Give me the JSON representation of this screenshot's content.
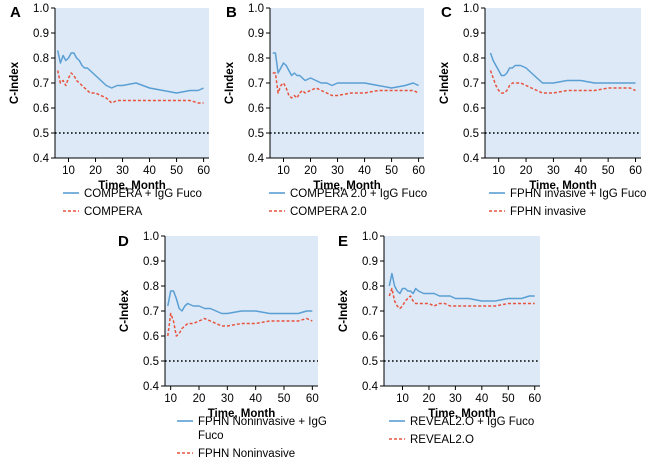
{
  "chart_data": [
    {
      "panel": "A",
      "type": "line",
      "xlabel": "Time, Month",
      "ylabel": "C-Index",
      "xlim": [
        5,
        62
      ],
      "ylim": [
        0.4,
        1.0
      ],
      "xticks": [
        10,
        20,
        30,
        40,
        50,
        60
      ],
      "yticks": [
        0.4,
        0.5,
        0.6,
        0.7,
        0.8,
        0.9,
        1.0
      ],
      "reference_line": 0.5,
      "series": [
        {
          "name": "COMPERA + IgG Fuco",
          "style": "solid",
          "color": "#5a9fd4",
          "x": [
            6,
            7,
            8,
            9,
            10,
            11,
            12,
            13,
            14,
            15,
            16,
            17,
            18,
            19,
            20,
            22,
            24,
            26,
            28,
            30,
            35,
            40,
            45,
            50,
            55,
            58,
            60
          ],
          "y": [
            0.83,
            0.78,
            0.81,
            0.79,
            0.8,
            0.82,
            0.82,
            0.8,
            0.79,
            0.77,
            0.76,
            0.76,
            0.75,
            0.74,
            0.73,
            0.71,
            0.69,
            0.68,
            0.69,
            0.69,
            0.7,
            0.68,
            0.67,
            0.66,
            0.67,
            0.67,
            0.68
          ]
        },
        {
          "name": "COMPERA",
          "style": "dashed",
          "color": "#e8533d",
          "x": [
            6,
            7,
            8,
            9,
            10,
            11,
            12,
            13,
            14,
            15,
            16,
            17,
            18,
            19,
            20,
            22,
            24,
            26,
            28,
            30,
            35,
            40,
            45,
            50,
            55,
            58,
            60
          ],
          "y": [
            0.75,
            0.7,
            0.71,
            0.69,
            0.72,
            0.74,
            0.73,
            0.71,
            0.7,
            0.69,
            0.68,
            0.67,
            0.66,
            0.66,
            0.66,
            0.65,
            0.64,
            0.62,
            0.63,
            0.63,
            0.63,
            0.63,
            0.63,
            0.63,
            0.63,
            0.62,
            0.62
          ]
        }
      ]
    },
    {
      "panel": "B",
      "type": "line",
      "xlabel": "Time, Month",
      "ylabel": "C-Index",
      "xlim": [
        5,
        62
      ],
      "ylim": [
        0.4,
        1.0
      ],
      "xticks": [
        10,
        20,
        30,
        40,
        50,
        60
      ],
      "yticks": [
        0.4,
        0.5,
        0.6,
        0.7,
        0.8,
        0.9,
        1.0
      ],
      "reference_line": 0.5,
      "series": [
        {
          "name": "COMPERA 2.0 + IgG Fuco",
          "style": "solid",
          "color": "#5a9fd4",
          "x": [
            6,
            7,
            8,
            9,
            10,
            11,
            12,
            13,
            14,
            15,
            16,
            17,
            18,
            20,
            22,
            24,
            26,
            28,
            30,
            35,
            40,
            45,
            50,
            55,
            58,
            60
          ],
          "y": [
            0.82,
            0.82,
            0.74,
            0.76,
            0.78,
            0.77,
            0.75,
            0.73,
            0.74,
            0.73,
            0.73,
            0.72,
            0.71,
            0.72,
            0.71,
            0.7,
            0.7,
            0.69,
            0.7,
            0.7,
            0.7,
            0.69,
            0.68,
            0.69,
            0.7,
            0.69
          ]
        },
        {
          "name": "COMPERA 2.0",
          "style": "dashed",
          "color": "#e8533d",
          "x": [
            6,
            7,
            8,
            9,
            10,
            11,
            12,
            13,
            14,
            15,
            16,
            17,
            18,
            20,
            22,
            24,
            26,
            28,
            30,
            35,
            40,
            45,
            50,
            55,
            58,
            60
          ],
          "y": [
            0.74,
            0.74,
            0.66,
            0.69,
            0.7,
            0.68,
            0.65,
            0.64,
            0.65,
            0.64,
            0.66,
            0.67,
            0.66,
            0.67,
            0.68,
            0.67,
            0.66,
            0.65,
            0.65,
            0.66,
            0.66,
            0.67,
            0.67,
            0.67,
            0.67,
            0.66
          ]
        }
      ]
    },
    {
      "panel": "C",
      "type": "line",
      "xlabel": "Time, Month",
      "ylabel": "C-Index",
      "xlim": [
        5,
        62
      ],
      "ylim": [
        0.4,
        1.0
      ],
      "xticks": [
        10,
        20,
        30,
        40,
        50,
        60
      ],
      "yticks": [
        0.4,
        0.5,
        0.6,
        0.7,
        0.8,
        0.9,
        1.0
      ],
      "reference_line": 0.5,
      "series": [
        {
          "name": "FPHN invasive + IgG Fuco",
          "style": "solid",
          "color": "#5a9fd4",
          "x": [
            7,
            8,
            9,
            10,
            11,
            12,
            13,
            14,
            15,
            16,
            18,
            20,
            22,
            24,
            26,
            28,
            30,
            35,
            40,
            45,
            50,
            55,
            58,
            60
          ],
          "y": [
            0.82,
            0.79,
            0.77,
            0.75,
            0.73,
            0.73,
            0.74,
            0.76,
            0.76,
            0.77,
            0.77,
            0.76,
            0.74,
            0.72,
            0.7,
            0.7,
            0.7,
            0.71,
            0.71,
            0.7,
            0.7,
            0.7,
            0.7,
            0.7
          ]
        },
        {
          "name": "FPHN invasive",
          "style": "dashed",
          "color": "#e8533d",
          "x": [
            7,
            8,
            9,
            10,
            11,
            12,
            13,
            14,
            15,
            16,
            18,
            20,
            22,
            24,
            26,
            28,
            30,
            35,
            40,
            45,
            50,
            55,
            58,
            60
          ],
          "y": [
            0.75,
            0.72,
            0.69,
            0.67,
            0.66,
            0.66,
            0.67,
            0.69,
            0.7,
            0.7,
            0.7,
            0.69,
            0.68,
            0.67,
            0.66,
            0.66,
            0.66,
            0.67,
            0.67,
            0.67,
            0.68,
            0.68,
            0.68,
            0.67
          ]
        }
      ]
    },
    {
      "panel": "D",
      "type": "line",
      "xlabel": "Time, Month",
      "ylabel": "C-Index",
      "xlim": [
        8,
        62
      ],
      "ylim": [
        0.4,
        1.0
      ],
      "xticks": [
        10,
        20,
        30,
        40,
        50,
        60
      ],
      "yticks": [
        0.4,
        0.5,
        0.6,
        0.7,
        0.8,
        0.9,
        1.0
      ],
      "reference_line": 0.5,
      "series": [
        {
          "name": "FPHN Noninvasive + IgG Fuco",
          "style": "solid",
          "color": "#5a9fd4",
          "x": [
            9,
            10,
            11,
            12,
            13,
            14,
            15,
            16,
            18,
            20,
            22,
            24,
            26,
            28,
            30,
            35,
            40,
            45,
            50,
            55,
            58,
            60
          ],
          "y": [
            0.72,
            0.78,
            0.78,
            0.75,
            0.71,
            0.7,
            0.72,
            0.73,
            0.72,
            0.72,
            0.71,
            0.71,
            0.7,
            0.69,
            0.69,
            0.7,
            0.7,
            0.69,
            0.69,
            0.69,
            0.7,
            0.7
          ]
        },
        {
          "name": "FPHN Noninvasive",
          "style": "dashed",
          "color": "#e8533d",
          "x": [
            9,
            10,
            11,
            12,
            13,
            14,
            15,
            16,
            18,
            20,
            22,
            24,
            26,
            28,
            30,
            35,
            40,
            45,
            50,
            55,
            58,
            60
          ],
          "y": [
            0.6,
            0.69,
            0.66,
            0.6,
            0.61,
            0.63,
            0.64,
            0.65,
            0.65,
            0.66,
            0.67,
            0.66,
            0.65,
            0.64,
            0.64,
            0.65,
            0.65,
            0.66,
            0.66,
            0.66,
            0.67,
            0.66
          ]
        }
      ]
    },
    {
      "panel": "E",
      "type": "line",
      "xlabel": "Time, Month",
      "ylabel": "C-Index",
      "xlim": [
        3,
        62
      ],
      "ylim": [
        0.4,
        1.0
      ],
      "xticks": [
        10,
        20,
        30,
        40,
        50,
        60
      ],
      "yticks": [
        0.4,
        0.5,
        0.6,
        0.7,
        0.8,
        0.9,
        1.0
      ],
      "reference_line": 0.5,
      "series": [
        {
          "name": "REVEAL2.O + IgG Fuco",
          "style": "solid",
          "color": "#5a9fd4",
          "x": [
            5,
            6,
            7,
            8,
            9,
            10,
            11,
            12,
            13,
            14,
            15,
            16,
            18,
            20,
            22,
            24,
            26,
            28,
            30,
            35,
            40,
            45,
            50,
            55,
            58,
            60
          ],
          "y": [
            0.8,
            0.85,
            0.8,
            0.78,
            0.77,
            0.79,
            0.79,
            0.78,
            0.78,
            0.77,
            0.79,
            0.78,
            0.77,
            0.77,
            0.77,
            0.76,
            0.76,
            0.76,
            0.75,
            0.75,
            0.74,
            0.74,
            0.75,
            0.75,
            0.76,
            0.76
          ]
        },
        {
          "name": "REVEAL2.O",
          "style": "dashed",
          "color": "#e8533d",
          "x": [
            5,
            6,
            7,
            8,
            9,
            10,
            11,
            12,
            13,
            14,
            15,
            16,
            18,
            20,
            22,
            24,
            26,
            28,
            30,
            35,
            40,
            45,
            50,
            55,
            58,
            60
          ],
          "y": [
            0.76,
            0.79,
            0.74,
            0.72,
            0.71,
            0.72,
            0.74,
            0.75,
            0.76,
            0.74,
            0.73,
            0.73,
            0.73,
            0.73,
            0.72,
            0.73,
            0.73,
            0.72,
            0.72,
            0.72,
            0.72,
            0.72,
            0.73,
            0.73,
            0.73,
            0.73
          ]
        }
      ]
    }
  ],
  "colors": {
    "plot_background": "#dde9f7",
    "reference_line": "#000000"
  }
}
